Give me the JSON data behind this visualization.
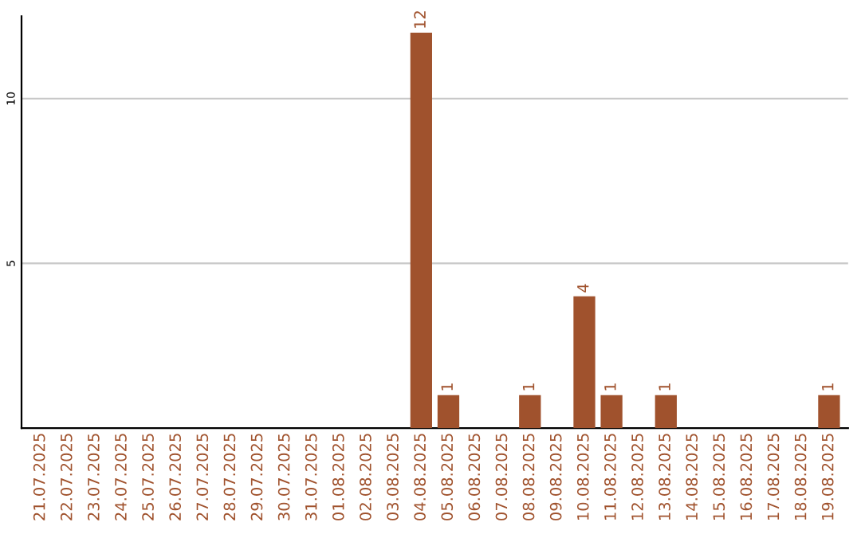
{
  "chart_data": {
    "type": "bar",
    "categories": [
      "21.07.2025",
      "22.07.2025",
      "23.07.2025",
      "24.07.2025",
      "25.07.2025",
      "26.07.2025",
      "27.07.2025",
      "28.07.2025",
      "29.07.2025",
      "30.07.2025",
      "31.07.2025",
      "01.08.2025",
      "02.08.2025",
      "03.08.2025",
      "04.08.2025",
      "05.08.2025",
      "06.08.2025",
      "07.08.2025",
      "08.08.2025",
      "09.08.2025",
      "10.08.2025",
      "11.08.2025",
      "12.08.2025",
      "13.08.2025",
      "14.08.2025",
      "15.08.2025",
      "16.08.2025",
      "17.08.2025",
      "18.08.2025",
      "19.08.2025"
    ],
    "values": [
      0,
      0,
      0,
      0,
      0,
      0,
      0,
      0,
      0,
      0,
      0,
      0,
      0,
      0,
      12,
      1,
      0,
      0,
      1,
      0,
      4,
      1,
      0,
      1,
      0,
      0,
      0,
      0,
      0,
      1
    ],
    "value_labels": [
      null,
      null,
      null,
      null,
      null,
      null,
      null,
      null,
      null,
      null,
      null,
      null,
      null,
      null,
      "12",
      "1",
      null,
      null,
      "1",
      null,
      "4",
      "1",
      null,
      "1",
      null,
      null,
      null,
      null,
      null,
      "1"
    ],
    "color": "#a0522d",
    "ylim": [
      0,
      12.5
    ],
    "yticks": [
      5,
      10
    ],
    "grid": "y",
    "legend": false
  }
}
